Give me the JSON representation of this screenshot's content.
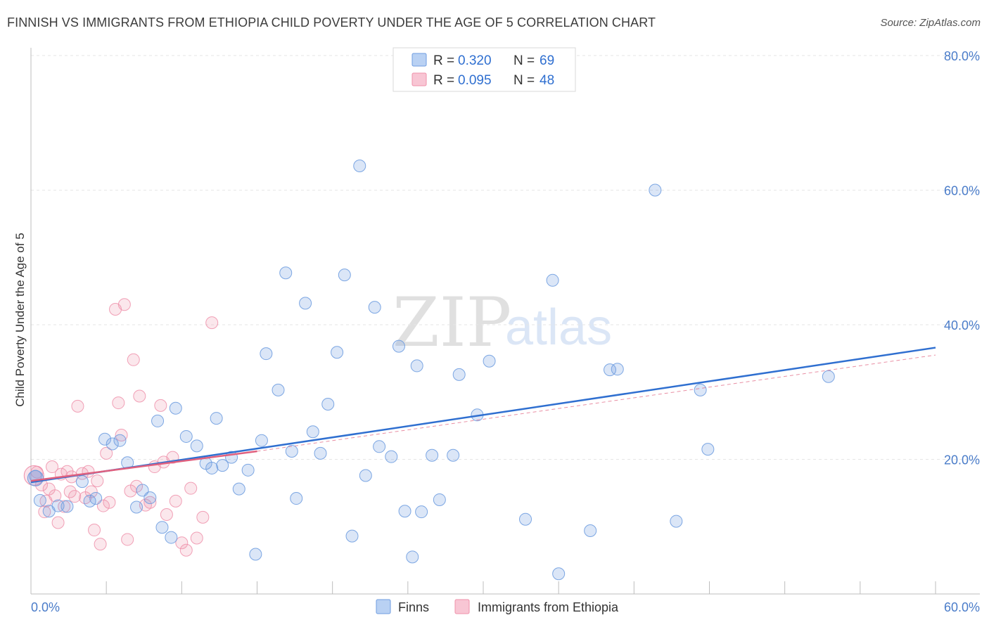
{
  "title": "FINNISH VS IMMIGRANTS FROM ETHIOPIA CHILD POVERTY UNDER THE AGE OF 5 CORRELATION CHART",
  "source": "Source: ZipAtlas.com",
  "watermark": {
    "zip": "ZIP",
    "atlas": "atlas"
  },
  "legend": {
    "r_label": "R =",
    "n_label": "N =",
    "rows": [
      {
        "r": "0.320",
        "n": "69"
      },
      {
        "r": "0.095",
        "n": "48"
      }
    ]
  },
  "chart_data": {
    "type": "scatter",
    "title": "FINNISH VS IMMIGRANTS FROM ETHIOPIA CHILD POVERTY UNDER THE AGE OF 5 CORRELATION CHART",
    "xlabel": "",
    "ylabel": "Child Poverty Under the Age of 5",
    "xlim": [
      0,
      60
    ],
    "ylim": [
      0,
      80
    ],
    "x_tick_labels": [
      "0.0%",
      "60.0%"
    ],
    "y_ticks": [
      20,
      40,
      60,
      80
    ],
    "y_tick_labels": [
      "20.0%",
      "40.0%",
      "60.0%",
      "80.0%"
    ],
    "colors": {
      "finns": "#6f9de0",
      "ethiopia": "#ef90aa",
      "finns_line": "#2f6fd0",
      "ethiopia_line": "#e0607e"
    },
    "series": [
      {
        "name": "Finns",
        "r": 0.32,
        "n": 69,
        "trend": {
          "x": [
            0,
            60
          ],
          "y": [
            16.6,
            36.6
          ]
        },
        "points": [
          [
            0.3,
            17.5
          ],
          [
            0.6,
            13.9
          ],
          [
            1.2,
            12.3
          ],
          [
            1.8,
            13.1
          ],
          [
            2.4,
            13.0
          ],
          [
            3.4,
            16.7
          ],
          [
            3.9,
            13.8
          ],
          [
            4.3,
            14.2
          ],
          [
            4.9,
            23.0
          ],
          [
            5.4,
            22.3
          ],
          [
            5.9,
            22.8
          ],
          [
            6.4,
            19.5
          ],
          [
            7.0,
            12.9
          ],
          [
            7.4,
            15.4
          ],
          [
            7.9,
            14.3
          ],
          [
            8.4,
            25.7
          ],
          [
            8.7,
            9.9
          ],
          [
            9.3,
            8.4
          ],
          [
            9.6,
            27.6
          ],
          [
            10.3,
            23.4
          ],
          [
            11.0,
            22.0
          ],
          [
            11.6,
            19.4
          ],
          [
            12.0,
            18.7
          ],
          [
            12.3,
            26.1
          ],
          [
            12.7,
            19.1
          ],
          [
            13.3,
            20.3
          ],
          [
            13.8,
            15.6
          ],
          [
            14.4,
            18.4
          ],
          [
            14.9,
            5.9
          ],
          [
            15.3,
            22.8
          ],
          [
            15.6,
            35.7
          ],
          [
            16.4,
            30.3
          ],
          [
            16.9,
            47.7
          ],
          [
            17.3,
            21.2
          ],
          [
            17.6,
            14.2
          ],
          [
            18.2,
            43.2
          ],
          [
            18.7,
            24.1
          ],
          [
            19.2,
            20.9
          ],
          [
            19.7,
            28.2
          ],
          [
            20.3,
            35.9
          ],
          [
            20.8,
            47.4
          ],
          [
            21.3,
            8.6
          ],
          [
            21.8,
            63.6
          ],
          [
            22.2,
            17.6
          ],
          [
            22.8,
            42.6
          ],
          [
            23.1,
            21.9
          ],
          [
            23.9,
            20.4
          ],
          [
            24.4,
            36.8
          ],
          [
            24.8,
            12.3
          ],
          [
            25.3,
            5.5
          ],
          [
            25.6,
            33.9
          ],
          [
            25.9,
            12.2
          ],
          [
            26.6,
            20.6
          ],
          [
            27.1,
            14.0
          ],
          [
            28.0,
            20.6
          ],
          [
            28.4,
            32.6
          ],
          [
            29.6,
            26.6
          ],
          [
            30.4,
            34.6
          ],
          [
            32.8,
            11.1
          ],
          [
            34.6,
            46.6
          ],
          [
            37.1,
            9.4
          ],
          [
            38.4,
            33.3
          ],
          [
            38.9,
            33.4
          ],
          [
            41.4,
            60.0
          ],
          [
            42.8,
            10.8
          ],
          [
            44.4,
            30.3
          ],
          [
            35.0,
            3.0
          ],
          [
            44.9,
            21.5
          ],
          [
            52.9,
            32.3
          ]
        ]
      },
      {
        "name": "Immigrants from Ethiopia",
        "r": 0.095,
        "n": 48,
        "trend": {
          "x": [
            0,
            15
          ],
          "y": [
            16.8,
            21.2
          ]
        },
        "dashed_extension": {
          "x": [
            15,
            60
          ],
          "y": [
            21.2,
            35.5
          ]
        },
        "points": [
          [
            0.4,
            18.1
          ],
          [
            0.7,
            16.2
          ],
          [
            0.9,
            12.2
          ],
          [
            1.0,
            13.8
          ],
          [
            1.2,
            15.6
          ],
          [
            1.4,
            18.9
          ],
          [
            1.6,
            14.6
          ],
          [
            1.8,
            10.6
          ],
          [
            2.0,
            17.8
          ],
          [
            2.2,
            13.0
          ],
          [
            2.4,
            18.2
          ],
          [
            2.6,
            15.2
          ],
          [
            2.9,
            14.5
          ],
          [
            3.1,
            27.9
          ],
          [
            3.4,
            17.9
          ],
          [
            3.6,
            14.3
          ],
          [
            3.8,
            18.2
          ],
          [
            4.0,
            15.2
          ],
          [
            4.2,
            9.5
          ],
          [
            4.6,
            7.4
          ],
          [
            4.8,
            13.1
          ],
          [
            5.0,
            20.9
          ],
          [
            5.2,
            13.6
          ],
          [
            5.6,
            42.3
          ],
          [
            5.8,
            28.4
          ],
          [
            6.0,
            23.6
          ],
          [
            6.4,
            8.1
          ],
          [
            6.6,
            15.3
          ],
          [
            6.8,
            34.8
          ],
          [
            7.0,
            16.0
          ],
          [
            7.2,
            29.4
          ],
          [
            7.6,
            13.2
          ],
          [
            7.9,
            13.6
          ],
          [
            8.2,
            18.9
          ],
          [
            8.6,
            28.0
          ],
          [
            9.0,
            11.8
          ],
          [
            9.4,
            20.3
          ],
          [
            9.6,
            13.8
          ],
          [
            10.0,
            7.6
          ],
          [
            10.3,
            6.5
          ],
          [
            10.6,
            15.7
          ],
          [
            11.0,
            8.3
          ],
          [
            11.4,
            11.4
          ],
          [
            12.0,
            40.3
          ],
          [
            6.2,
            43.0
          ],
          [
            8.8,
            19.6
          ],
          [
            4.4,
            16.8
          ],
          [
            2.7,
            17.4
          ]
        ]
      }
    ]
  },
  "bottom_legend": {
    "finns": "Finns",
    "ethiopia": "Immigrants from Ethiopia"
  }
}
